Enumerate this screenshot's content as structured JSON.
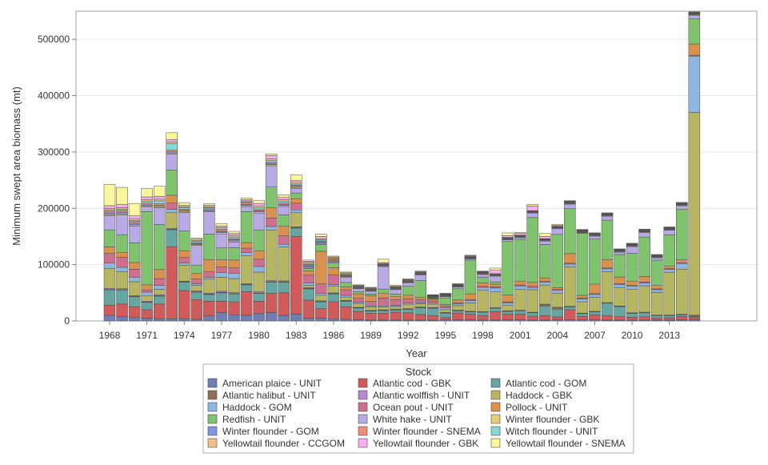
{
  "chart_data": {
    "type": "bar",
    "stacked": true,
    "title": "",
    "xlabel": "Year",
    "ylabel": "Minimum swept area biomass (mt)",
    "ylim": [
      0,
      550000
    ],
    "yticks": [
      0,
      100000,
      200000,
      300000,
      400000,
      500000
    ],
    "ytick_labels": [
      "0",
      "100000",
      "200000",
      "300000",
      "400000",
      "500000"
    ],
    "xtick_labels": [
      "1968",
      "1971",
      "1974",
      "1977",
      "1980",
      "1983",
      "1986",
      "1989",
      "1992",
      "1995",
      "1998",
      "2001",
      "2004",
      "2007",
      "2010",
      "2013"
    ],
    "grid": true,
    "legend_title": "Stock",
    "legend_position": "bottom",
    "categories": [
      1968,
      1969,
      1970,
      1971,
      1972,
      1973,
      1974,
      1975,
      1976,
      1977,
      1978,
      1979,
      1980,
      1981,
      1982,
      1983,
      1984,
      1985,
      1986,
      1987,
      1988,
      1989,
      1990,
      1991,
      1992,
      1993,
      1994,
      1995,
      1996,
      1997,
      1998,
      1999,
      2000,
      2001,
      2002,
      2003,
      2004,
      2005,
      2006,
      2007,
      2008,
      2009,
      2010,
      2011,
      2012,
      2013,
      2014,
      2015
    ],
    "series": [
      {
        "name": "American plaice - UNIT",
        "color": "#6f7eb3",
        "values": [
          10000,
          8000,
          6000,
          5000,
          4000,
          4000,
          4000,
          3000,
          9000,
          15000,
          11000,
          10000,
          13000,
          15000,
          10000,
          12000,
          5000,
          5000,
          4000,
          3000,
          2000,
          1500,
          1500,
          1500,
          1500,
          1500,
          1500,
          2000,
          2000,
          2000,
          1500,
          1500,
          2000,
          2000,
          1500,
          1500,
          2000,
          2000,
          2000,
          2000,
          1500,
          1500,
          1500,
          1500,
          1500,
          1500,
          2000,
          2000
        ]
      },
      {
        "name": "Atlantic cod - GBK",
        "color": "#d05b5b",
        "values": [
          18000,
          22000,
          19000,
          15000,
          26000,
          128000,
          50000,
          35000,
          26000,
          20000,
          23000,
          42000,
          22000,
          34000,
          40000,
          138000,
          32000,
          17000,
          30000,
          22000,
          15000,
          12000,
          12000,
          14000,
          13000,
          10000,
          8000,
          4000,
          12000,
          10000,
          8000,
          15000,
          10000,
          10000,
          7000,
          8000,
          5000,
          18000,
          6000,
          9000,
          8000,
          6000,
          5000,
          6000,
          3000,
          4000,
          6000,
          4000
        ]
      },
      {
        "name": "Atlantic cod - GOM",
        "color": "#66a5a0",
        "values": [
          27000,
          25000,
          18000,
          13000,
          14000,
          30000,
          15000,
          13000,
          12000,
          15000,
          14000,
          12000,
          14000,
          20000,
          19000,
          15000,
          20000,
          12000,
          14000,
          10000,
          6000,
          4000,
          5000,
          4000,
          6000,
          12000,
          13000,
          8000,
          4000,
          4000,
          6000,
          6000,
          5000,
          6000,
          6000,
          17000,
          14000,
          5000,
          5000,
          5000,
          22000,
          18000,
          7000,
          7000,
          5000,
          4000,
          3000,
          2000
        ]
      },
      {
        "name": "Atlantic halibut - UNIT",
        "color": "#8e7057",
        "values": [
          700,
          700,
          700,
          700,
          700,
          700,
          700,
          700,
          700,
          700,
          700,
          700,
          700,
          700,
          700,
          700,
          700,
          700,
          700,
          700,
          700,
          700,
          700,
          700,
          700,
          700,
          700,
          700,
          700,
          700,
          700,
          700,
          700,
          700,
          700,
          3000,
          3000,
          700,
          700,
          700,
          700,
          700,
          700,
          700,
          700,
          700,
          700,
          2000
        ]
      },
      {
        "name": "Atlantic wolffish - UNIT",
        "color": "#b988cb",
        "values": [
          2000,
          1500,
          1000,
          1500,
          1500,
          1500,
          1000,
          1500,
          1500,
          2000,
          1500,
          1500,
          2000,
          2000,
          1500,
          1500,
          1500,
          1000,
          1000,
          700,
          500,
          500,
          500,
          500,
          500,
          500,
          500,
          400,
          400,
          400,
          300,
          300,
          300,
          300,
          300,
          300,
          300,
          300,
          300,
          300,
          300,
          300,
          300,
          300,
          300,
          300,
          300,
          300
        ]
      },
      {
        "name": "Haddock - GBK",
        "color": "#b6b662",
        "values": [
          35000,
          30000,
          25000,
          10000,
          10000,
          28000,
          28000,
          10000,
          25000,
          25000,
          25000,
          50000,
          35000,
          90000,
          60000,
          25000,
          4000,
          10000,
          12000,
          6000,
          7000,
          6000,
          5000,
          5000,
          8000,
          6000,
          6000,
          5000,
          8000,
          15000,
          38000,
          28000,
          10000,
          37000,
          40000,
          34000,
          25000,
          70000,
          20000,
          25000,
          55000,
          33000,
          42000,
          47000,
          40000,
          76000,
          80000,
          360000
        ]
      },
      {
        "name": "Haddock - GOM",
        "color": "#8db6e1",
        "values": [
          10000,
          8000,
          8000,
          6000,
          7000,
          6000,
          4000,
          3000,
          3000,
          8000,
          9000,
          5000,
          10000,
          6000,
          5000,
          5000,
          4000,
          3000,
          3000,
          3000,
          2000,
          2000,
          2000,
          2000,
          2000,
          2000,
          2000,
          3000,
          3000,
          4000,
          5000,
          7000,
          4000,
          6000,
          4000,
          5000,
          5000,
          5000,
          5000,
          5000,
          5000,
          5000,
          5000,
          5000,
          5000,
          5000,
          10000,
          100000
        ]
      },
      {
        "name": "Ocean pout - UNIT",
        "color": "#cf6f8f",
        "values": [
          17000,
          18000,
          14000,
          4000,
          12000,
          11000,
          10000,
          8000,
          10000,
          10000,
          10000,
          8000,
          13000,
          15000,
          15000,
          12000,
          14000,
          17000,
          17000,
          10000,
          7000,
          8000,
          14000,
          10000,
          8000,
          5000,
          4000,
          3000,
          2000,
          2000,
          2000,
          2000,
          2000,
          2000,
          2000,
          2000,
          1500,
          1500,
          1500,
          1500,
          1500,
          1500,
          1500,
          1500,
          1500,
          1500,
          1500,
          1500
        ]
      },
      {
        "name": "Pollock - UNIT",
        "color": "#d9914e",
        "values": [
          12000,
          8000,
          12000,
          9000,
          16000,
          14000,
          12000,
          10000,
          22000,
          13000,
          14000,
          10000,
          15000,
          18000,
          17000,
          8000,
          8000,
          58000,
          13000,
          5000,
          8000,
          10000,
          8000,
          6000,
          6000,
          4000,
          3000,
          3000,
          5000,
          10000,
          6000,
          5000,
          12000,
          6000,
          7000,
          5000,
          3000,
          17000,
          5000,
          17000,
          15000,
          12000,
          7000,
          10000,
          6000,
          4000,
          5000,
          20000
        ]
      },
      {
        "name": "Redfish - UNIT",
        "color": "#7fc36e",
        "values": [
          30000,
          32000,
          35000,
          130000,
          80000,
          45000,
          35000,
          15000,
          45000,
          21000,
          22000,
          55000,
          37000,
          37000,
          20000,
          10000,
          4000,
          12000,
          8000,
          8000,
          4000,
          3000,
          8000,
          4000,
          16000,
          30000,
          1000,
          12000,
          20000,
          60000,
          10000,
          4000,
          95000,
          75000,
          115000,
          60000,
          95000,
          80000,
          110000,
          80000,
          70000,
          40000,
          50000,
          70000,
          45000,
          56000,
          90000,
          45000
        ]
      },
      {
        "name": "White hake - UNIT",
        "color": "#b7aae5",
        "values": [
          25000,
          35000,
          30000,
          8000,
          30000,
          28000,
          33000,
          35000,
          40000,
          25000,
          10000,
          9000,
          30000,
          38000,
          15000,
          8000,
          2000,
          2000,
          2000,
          9000,
          5000,
          5000,
          40000,
          8000,
          6000,
          10000,
          1000,
          2000,
          3000,
          2000,
          5000,
          10000,
          3000,
          3000,
          8000,
          6000,
          10000,
          8000,
          1000,
          5000,
          7000,
          4000,
          12000,
          8000,
          4000,
          8000,
          6000,
          6000
        ]
      },
      {
        "name": "Winter flounder - GBK",
        "color": "#e3cf77",
        "values": [
          2000,
          2000,
          2000,
          2000,
          2000,
          2000,
          2000,
          1500,
          1500,
          2000,
          2000,
          2000,
          2000,
          2000,
          2000,
          2000,
          1500,
          1500,
          1500,
          1500,
          1000,
          1000,
          1000,
          1000,
          1000,
          1000,
          1000,
          1000,
          1000,
          1000,
          1000,
          1000,
          1000,
          1000,
          1000,
          1000,
          1000,
          1000,
          1000,
          1000,
          1000,
          1000,
          1000,
          1000,
          1000,
          1000,
          1000,
          1000
        ]
      },
      {
        "name": "Winter flounder - GOM",
        "color": "#7f96e4",
        "values": [
          3000,
          3000,
          3000,
          2000,
          2000,
          2000,
          1500,
          1500,
          1500,
          2000,
          2000,
          2000,
          2000,
          2000,
          2000,
          2000,
          1500,
          1500,
          1500,
          1000,
          1000,
          1000,
          1000,
          1000,
          1000,
          1000,
          1000,
          1000,
          1000,
          1000,
          1000,
          1000,
          1000,
          1000,
          1000,
          1000,
          1000,
          1000,
          1000,
          1000,
          1000,
          1000,
          1000,
          1000,
          1000,
          1000,
          1000,
          1000
        ]
      },
      {
        "name": "Winter flounder - SNEMA",
        "color": "#f08b7f",
        "values": [
          3000,
          3000,
          3000,
          3000,
          3000,
          3000,
          2000,
          2000,
          2000,
          2000,
          2000,
          2000,
          2000,
          2000,
          2000,
          2000,
          2000,
          1500,
          1500,
          1000,
          1000,
          1000,
          1000,
          1000,
          1000,
          800,
          800,
          800,
          800,
          800,
          800,
          800,
          800,
          800,
          800,
          800,
          800,
          800,
          800,
          800,
          800,
          800,
          800,
          800,
          800,
          800,
          800,
          800
        ]
      },
      {
        "name": "Witch flounder - UNIT",
        "color": "#88d8d8",
        "values": [
          2000,
          2000,
          2000,
          3000,
          5000,
          12000,
          3000,
          2000,
          2000,
          2000,
          3000,
          2000,
          3000,
          3000,
          3000,
          2000,
          2000,
          2000,
          1500,
          1500,
          1000,
          1000,
          1000,
          1000,
          1000,
          1000,
          800,
          800,
          800,
          800,
          800,
          800,
          800,
          800,
          800,
          800,
          800,
          800,
          800,
          800,
          800,
          800,
          800,
          800,
          800,
          800,
          800,
          800
        ]
      },
      {
        "name": "Yellowtail flounder - CCGOM",
        "color": "#ecc18f",
        "values": [
          3000,
          3000,
          3000,
          3000,
          3000,
          3000,
          2000,
          2000,
          2000,
          3000,
          3000,
          2000,
          3000,
          3000,
          3000,
          3000,
          2000,
          2000,
          1500,
          1500,
          1000,
          1000,
          1000,
          1000,
          1000,
          1000,
          800,
          800,
          800,
          800,
          800,
          800,
          800,
          800,
          800,
          800,
          800,
          800,
          800,
          800,
          800,
          800,
          800,
          800,
          800,
          800,
          800,
          800
        ]
      },
      {
        "name": "Yellowtail flounder - GBK",
        "color": "#f7b0ec",
        "values": [
          5000,
          6000,
          5000,
          5000,
          5000,
          4000,
          2000,
          2000,
          2000,
          3000,
          3000,
          2000,
          5000,
          6000,
          4000,
          3000,
          2000,
          4000,
          1500,
          1500,
          1000,
          1000,
          2000,
          1000,
          1000,
          1000,
          800,
          800,
          800,
          1500,
          800,
          6000,
          3000,
          3000,
          8000,
          4000,
          2000,
          800,
          800,
          800,
          800,
          800,
          800,
          800,
          800,
          800,
          800,
          800
        ]
      },
      {
        "name": "Yellowtail flounder - SNEMA",
        "color": "#f8f79c",
        "values": [
          38000,
          30000,
          22000,
          15000,
          18000,
          12000,
          5000,
          2000,
          3000,
          4000,
          4000,
          3000,
          5000,
          3000,
          5000,
          10000,
          2000,
          4000,
          1500,
          1500,
          1000,
          1000,
          6000,
          2000,
          1000,
          1000,
          800,
          800,
          800,
          800,
          800,
          4000,
          5000,
          2000,
          3000,
          5000,
          1500,
          800,
          800,
          800,
          800,
          800,
          800,
          800,
          800,
          800,
          800,
          800
        ]
      }
    ]
  }
}
